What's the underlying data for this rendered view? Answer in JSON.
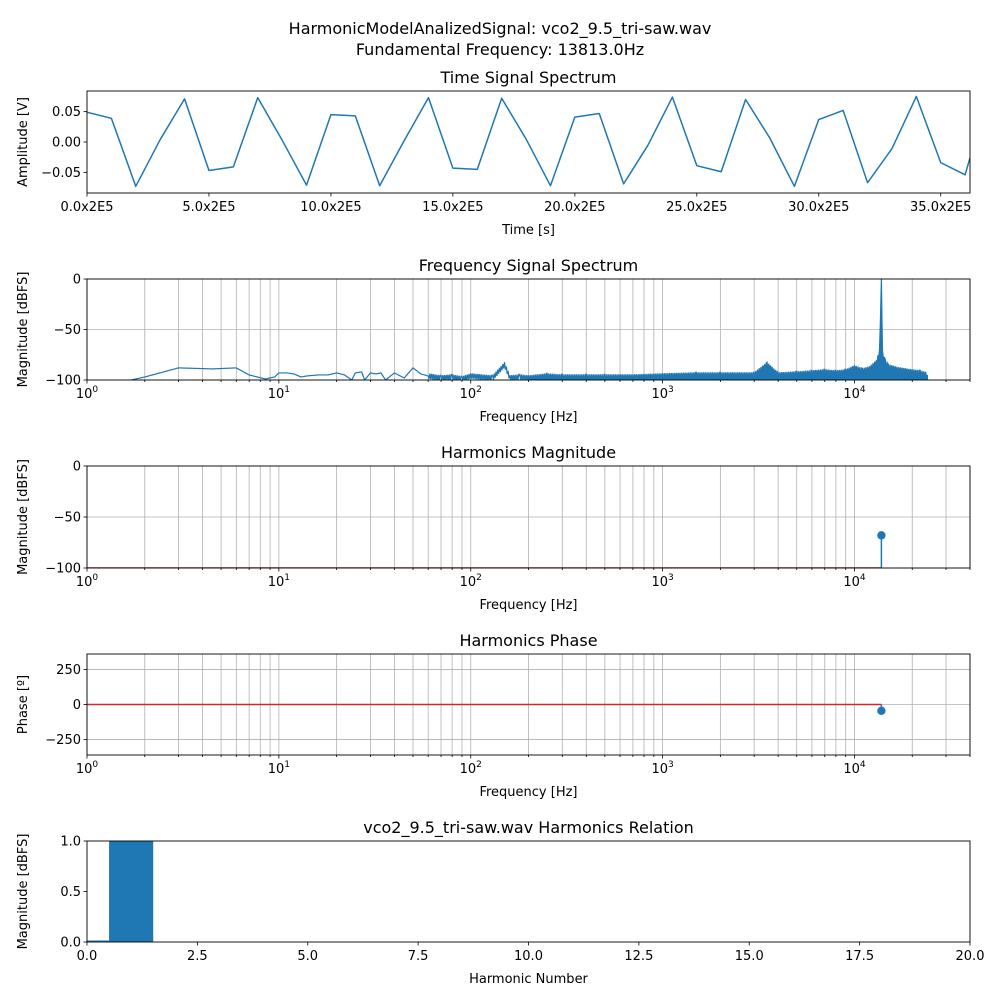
{
  "suptitle": [
    "HarmonicModelAnalizedSignal: vco2_9.5_tri-saw.wav",
    "Fundamental Frequency: 13813.0Hz"
  ],
  "chart_data": [
    {
      "type": "line",
      "title": "Time Signal Spectrum",
      "xlabel": "Time [s]",
      "ylabel": "Amplitude [V]",
      "xlim": [
        0,
        36.2
      ],
      "ylim": [
        -0.084,
        0.084
      ],
      "xticks": [
        0,
        5,
        10,
        15,
        20,
        25,
        30,
        35
      ],
      "xtick_labels": [
        "0.0x2E5",
        "5.0x2E5",
        "10.0x2E5",
        "15.0x2E5",
        "20.0x2E5",
        "25.0x2E5",
        "30.0x2E5",
        "35.0x2E5"
      ],
      "yticks": [
        -0.05,
        0,
        0.05
      ],
      "ytick_labels": [
        "−0.05",
        "0.00",
        "0.05"
      ],
      "grid": false,
      "series": [
        {
          "x": [
            0,
            1,
            2,
            3,
            4,
            5,
            6,
            7,
            8,
            9,
            10,
            11,
            12,
            13,
            14,
            15,
            16,
            17,
            18,
            19,
            20,
            21,
            22,
            23,
            24,
            25,
            26,
            27,
            28,
            29,
            30,
            31,
            32,
            33,
            34,
            35,
            36,
            36.2
          ],
          "y": [
            0.049,
            0.039,
            -0.073,
            0.004,
            0.071,
            -0.047,
            -0.041,
            0.073,
            0.003,
            -0.071,
            0.045,
            0.043,
            -0.072,
            0.002,
            0.073,
            -0.043,
            -0.045,
            0.072,
            0.005,
            -0.072,
            0.041,
            0.047,
            -0.069,
            -0.005,
            0.074,
            -0.039,
            -0.049,
            0.07,
            0.006,
            -0.073,
            0.037,
            0.052,
            -0.067,
            -0.011,
            0.075,
            -0.034,
            -0.054,
            -0.026
          ]
        }
      ]
    },
    {
      "type": "line",
      "title": "Frequency Signal Spectrum",
      "xlabel": "Frequency [Hz]",
      "ylabel": "Magnitude [dBFS]",
      "xscale": "log",
      "xlim": [
        1,
        40000
      ],
      "ylim": [
        -100,
        0
      ],
      "yticks": [
        -100,
        -50,
        0
      ],
      "ytick_labels": [
        "−100",
        "−50",
        "0"
      ],
      "grid": true,
      "series": [
        {
          "x": [
            1.7,
            2,
            3,
            4.5,
            6,
            7,
            8.5,
            9.5,
            10,
            11,
            12,
            13,
            14,
            16,
            18,
            20,
            22,
            24,
            25,
            27,
            28,
            30,
            32,
            34,
            36,
            40,
            45,
            50,
            55,
            60,
            70,
            80,
            90,
            100,
            130,
            150,
            160,
            180,
            200,
            250,
            300,
            400,
            500,
            700,
            1000,
            1500,
            2000,
            3000,
            3500,
            4000,
            5000,
            6000,
            7000,
            8000,
            9000,
            10000,
            11000,
            12000,
            13000,
            13500,
            13813,
            14000,
            14500,
            15000,
            17000,
            20000,
            22000,
            24000
          ],
          "y": [
            -100,
            -97,
            -88,
            -89,
            -88,
            -95,
            -99,
            -97,
            -93,
            -93,
            -94,
            -97,
            -96,
            -95,
            -95,
            -93,
            -95,
            -100,
            -93,
            -92,
            -100,
            -93,
            -94,
            -93,
            -100,
            -93,
            -98,
            -88,
            -94,
            -96,
            -98,
            -97,
            -99,
            -96,
            -98,
            -85,
            -98,
            -97,
            -98,
            -96,
            -97,
            -97,
            -97,
            -97,
            -96,
            -95,
            -95,
            -95,
            -85,
            -95,
            -94,
            -93,
            -92,
            -93,
            -92,
            -88,
            -91,
            -89,
            -83,
            -73,
            -2,
            -74,
            -83,
            -87,
            -90,
            -92,
            -93,
            -95
          ]
        }
      ]
    },
    {
      "type": "scatter",
      "title": "Harmonics Magnitude",
      "xlabel": "Frequency [Hz]",
      "ylabel": "Magnitude [dBFS]",
      "xscale": "log",
      "xlim": [
        1,
        40000
      ],
      "ylim": [
        -100,
        0
      ],
      "yticks": [
        -100,
        -50,
        0
      ],
      "ytick_labels": [
        "−100",
        "−50",
        "0"
      ],
      "grid": true,
      "baseline": -100,
      "series": [
        {
          "x": [
            13813.0
          ],
          "y": [
            -68
          ]
        }
      ]
    },
    {
      "type": "scatter",
      "title": "Harmonics Phase",
      "xlabel": "Frequency [Hz]",
      "ylabel": "Phase [º]",
      "xscale": "log",
      "xlim": [
        1,
        40000
      ],
      "ylim": [
        -360,
        360
      ],
      "yticks": [
        -250,
        0,
        250
      ],
      "ytick_labels": [
        "−250",
        "0",
        "250"
      ],
      "grid": true,
      "baseline": 0,
      "series": [
        {
          "x": [
            13813.0
          ],
          "y": [
            -45
          ]
        }
      ]
    },
    {
      "type": "bar",
      "title": "vco2_9.5_tri-saw.wav Harmonics Relation",
      "xlabel": "Harmonic Number",
      "ylabel": "Magnitude [dBFS]",
      "xlim": [
        0,
        20
      ],
      "ylim": [
        0,
        1
      ],
      "xticks": [
        0,
        2.5,
        5,
        7.5,
        10,
        12.5,
        15,
        17.5,
        20
      ],
      "xtick_labels": [
        "0.0",
        "2.5",
        "5.0",
        "7.5",
        "10.0",
        "12.5",
        "15.0",
        "17.5",
        "20.0"
      ],
      "yticks": [
        0,
        0.5,
        1
      ],
      "ytick_labels": [
        "0.0",
        "0.5",
        "1.0"
      ],
      "grid": false,
      "categories": [
        0,
        1
      ],
      "values": [
        0.015,
        1.0
      ]
    }
  ]
}
